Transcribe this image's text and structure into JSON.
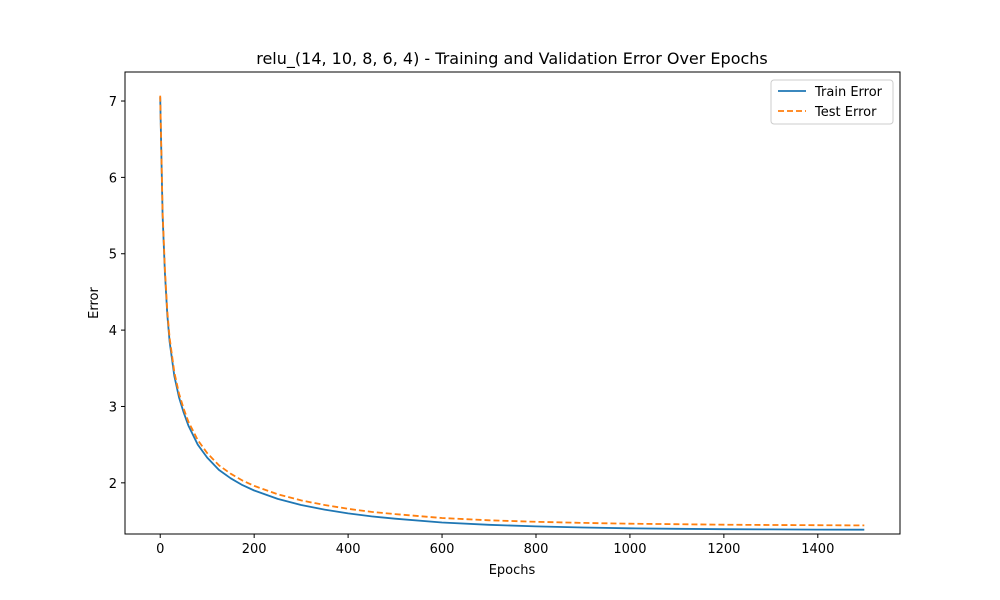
{
  "chart_data": {
    "type": "line",
    "title": "relu_(14, 10, 8, 6, 4) - Training and Validation Error Over Epochs",
    "xlabel": "Epochs",
    "ylabel": "Error",
    "xlim": [
      -75,
      1575
    ],
    "ylim": [
      1.33,
      7.38
    ],
    "xticks": [
      0,
      200,
      400,
      600,
      800,
      1000,
      1200,
      1400
    ],
    "yticks": [
      2,
      3,
      4,
      5,
      6,
      7
    ],
    "grid": false,
    "legend_position": "upper right",
    "series": [
      {
        "name": "Train Error",
        "color": "#1f77b4",
        "style": "solid",
        "x": [
          0,
          5,
          10,
          15,
          20,
          30,
          40,
          50,
          60,
          80,
          100,
          125,
          150,
          175,
          200,
          250,
          300,
          350,
          400,
          450,
          500,
          600,
          700,
          800,
          900,
          1000,
          1100,
          1200,
          1300,
          1400,
          1499
        ],
        "y": [
          7.05,
          5.5,
          4.75,
          4.2,
          3.85,
          3.4,
          3.12,
          2.92,
          2.75,
          2.5,
          2.33,
          2.17,
          2.06,
          1.97,
          1.9,
          1.79,
          1.71,
          1.65,
          1.6,
          1.56,
          1.53,
          1.48,
          1.45,
          1.43,
          1.415,
          1.405,
          1.398,
          1.393,
          1.39,
          1.388,
          1.386
        ]
      },
      {
        "name": "Test Error",
        "color": "#ff7f0e",
        "style": "dashed",
        "x": [
          0,
          5,
          10,
          15,
          20,
          30,
          40,
          50,
          60,
          80,
          100,
          125,
          150,
          175,
          200,
          250,
          300,
          350,
          400,
          450,
          500,
          600,
          700,
          800,
          900,
          1000,
          1100,
          1200,
          1300,
          1400,
          1499
        ],
        "y": [
          7.07,
          5.55,
          4.8,
          4.25,
          3.9,
          3.45,
          3.17,
          2.97,
          2.8,
          2.56,
          2.39,
          2.23,
          2.12,
          2.03,
          1.96,
          1.85,
          1.77,
          1.71,
          1.66,
          1.62,
          1.59,
          1.54,
          1.51,
          1.49,
          1.475,
          1.465,
          1.458,
          1.452,
          1.448,
          1.445,
          1.443
        ]
      }
    ]
  }
}
